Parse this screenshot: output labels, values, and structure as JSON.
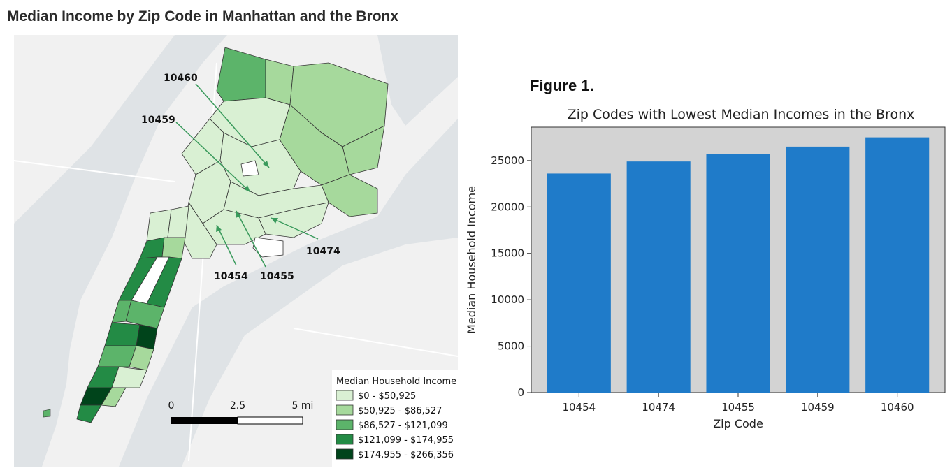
{
  "page_title": "Median Income by Zip Code in Manhattan and the Bronx",
  "figure_label": "Figure 1.",
  "map": {
    "legend": {
      "title": "Median Household Income",
      "items": [
        {
          "label": "$0 - $50,925",
          "color": "#d9f0d3"
        },
        {
          "label": "$50,925 - $86,527",
          "color": "#a6d99c"
        },
        {
          "label": "$86,527 - $121,099",
          "color": "#5cb46a"
        },
        {
          "label": "$121,099 - $174,955",
          "color": "#238b45"
        },
        {
          "label": "$174,955 - $266,356",
          "color": "#00441b"
        }
      ]
    },
    "scale_bar": {
      "labels": [
        "0",
        "2.5",
        "5 mi"
      ]
    },
    "annotations": [
      "10460",
      "10459",
      "10474",
      "10454",
      "10455"
    ],
    "colors": {
      "water": "#e3e6e8",
      "land": "#f2f2f2",
      "arrow": "#3a9a5c"
    }
  },
  "chart_data": {
    "type": "bar",
    "title": "Zip Codes with Lowest Median Incomes in the Bronx",
    "xlabel": "Zip Code",
    "ylabel": "Median Household Income",
    "categories": [
      "10454",
      "10474",
      "10455",
      "10459",
      "10460"
    ],
    "values": [
      23600,
      24900,
      25700,
      26500,
      27500
    ],
    "ylim": [
      0,
      28600
    ],
    "yticks": [
      0,
      5000,
      10000,
      15000,
      20000,
      25000
    ],
    "bar_color": "#1f7bc9",
    "background": "#d3d3d3",
    "grid": false
  }
}
